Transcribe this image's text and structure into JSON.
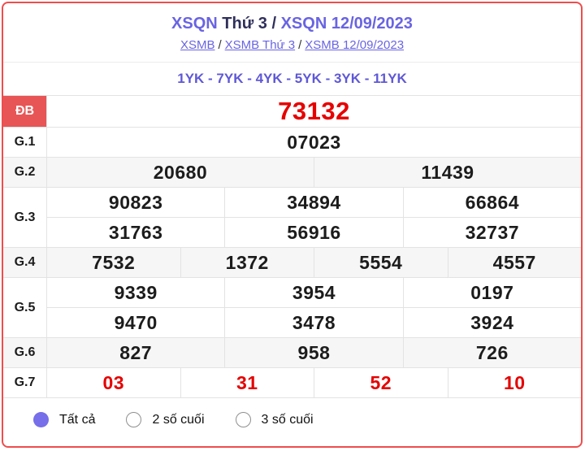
{
  "header": {
    "title": {
      "station": "XSQN",
      "day": "Thứ 3",
      "separator": "/",
      "station_date": "XSQN 12/09/2023"
    },
    "breadcrumb": {
      "separator": "/",
      "links": [
        {
          "label": "XSMB"
        },
        {
          "label": "XSMB Thứ 3"
        },
        {
          "label": "XSMB 12/09/2023"
        }
      ]
    },
    "yk_line": "1YK - 7YK - 4YK - 5YK - 3YK - 11YK"
  },
  "results_table": {
    "rows": [
      {
        "label": "ĐB",
        "cells": [
          [
            "73132"
          ]
        ]
      },
      {
        "label": "G.1",
        "cells": [
          [
            "07023"
          ]
        ]
      },
      {
        "label": "G.2",
        "cells": [
          [
            "20680",
            "11439"
          ]
        ]
      },
      {
        "label": "G.3",
        "cells": [
          [
            "90823",
            "34894",
            "66864"
          ],
          [
            "31763",
            "56916",
            "32737"
          ]
        ]
      },
      {
        "label": "G.4",
        "cells": [
          [
            "7532",
            "1372",
            "5554",
            "4557"
          ]
        ]
      },
      {
        "label": "G.5",
        "cells": [
          [
            "9339",
            "3954",
            "0197"
          ],
          [
            "9470",
            "3478",
            "3924"
          ]
        ]
      },
      {
        "label": "G.6",
        "cells": [
          [
            "827",
            "958",
            "726"
          ]
        ]
      },
      {
        "label": "G.7",
        "cells": [
          [
            "03",
            "31",
            "52",
            "10"
          ]
        ]
      }
    ]
  },
  "filter": {
    "options": [
      {
        "label": "Tất cả",
        "selected": true
      },
      {
        "label": "2 số cuối",
        "selected": false
      },
      {
        "label": "3 số cuối",
        "selected": false
      }
    ]
  },
  "colors": {
    "card_border": "#ef4d4d",
    "accent_purple": "#6964e2",
    "title_dark": "#30305c",
    "special_label_bg": "#e85556",
    "red_value": "#e60000",
    "gray_row_bg": "#f6f6f6",
    "cell_border": "#e3e3e3",
    "radio_selected": "#776ee9"
  }
}
